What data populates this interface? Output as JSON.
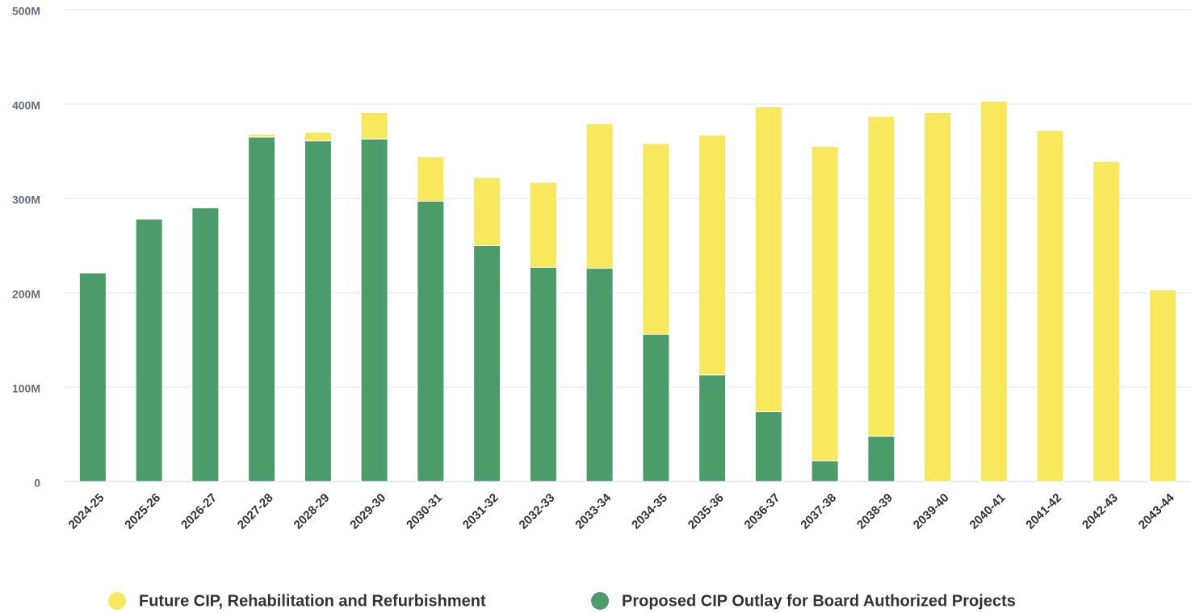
{
  "chart_data": {
    "type": "stacked_bar",
    "categories": [
      "2024-25",
      "2025-26",
      "2026-27",
      "2027-28",
      "2028-29",
      "2029-30",
      "2030-31",
      "2031-32",
      "2032-33",
      "2033-34",
      "2034-35",
      "2035-36",
      "2036-37",
      "2037-38",
      "2038-39",
      "2039-40",
      "2040-41",
      "2041-42",
      "2042-43",
      "2043-44"
    ],
    "series": [
      {
        "name": "Proposed CIP Outlay for Board Authorized Projects",
        "color": "#4c9c6b",
        "values": [
          221,
          278,
          290,
          365,
          361,
          363,
          297,
          250,
          227,
          226,
          156,
          113,
          74,
          22,
          48,
          0,
          0,
          0,
          0,
          0
        ]
      },
      {
        "name": "Future CIP, Rehabilitation and Refurbishment",
        "color": "#f7e85e",
        "values": [
          0,
          0,
          0,
          3,
          9,
          28,
          47,
          72,
          90,
          153,
          202,
          254,
          323,
          333,
          339,
          391,
          403,
          372,
          339,
          203
        ]
      }
    ],
    "ylim": [
      0,
      500
    ],
    "yticks": [
      0,
      {
        "value": 100,
        "label": "100M"
      },
      {
        "value": 200,
        "label": "200M"
      },
      {
        "value": 300,
        "label": "300M"
      },
      {
        "value": 400,
        "label": "400M"
      },
      {
        "value": 500,
        "label": "500M"
      }
    ],
    "grid": true,
    "legend": "bottom"
  }
}
